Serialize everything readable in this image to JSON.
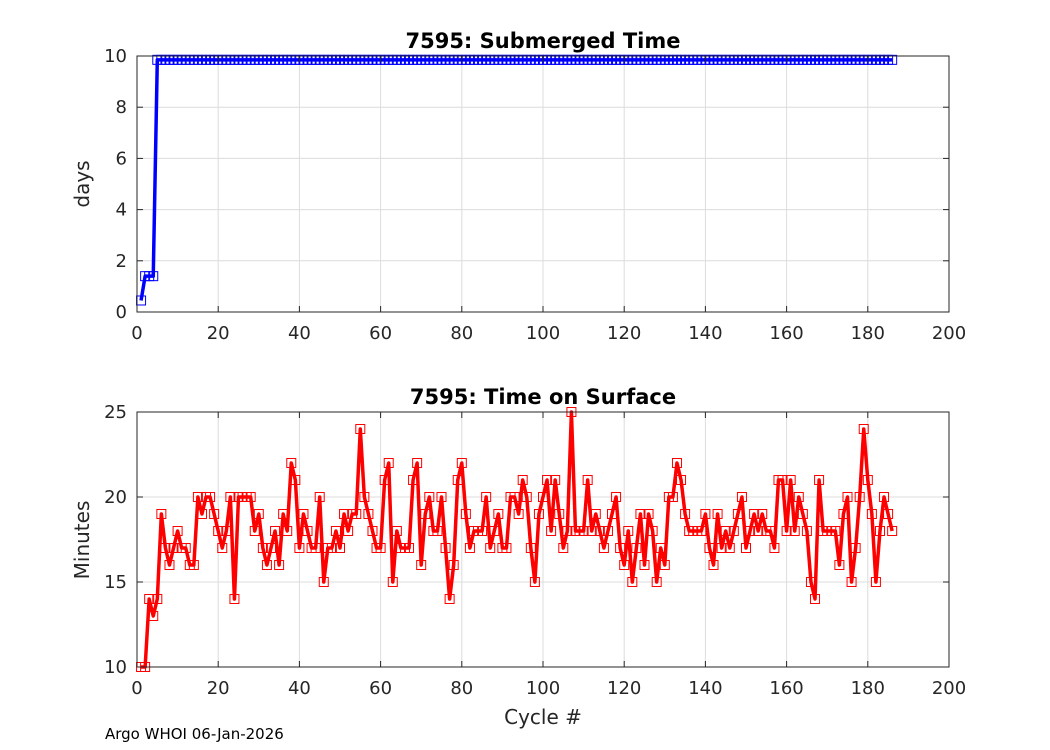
{
  "footer": "Argo WHOI 06-Jan-2026",
  "chart_data": [
    {
      "type": "line",
      "title": "7595: Submerged Time",
      "xlabel": "",
      "ylabel": "days",
      "xlim": [
        0,
        200
      ],
      "ylim": [
        0,
        10
      ],
      "xticks": [
        0,
        20,
        40,
        60,
        80,
        100,
        120,
        140,
        160,
        180,
        200
      ],
      "yticks": [
        0,
        2,
        4,
        6,
        8,
        10
      ],
      "grid": true,
      "color": "#0000ff",
      "marker": "square",
      "x_start": 1,
      "values": [
        0.45,
        1.4,
        1.4,
        1.4,
        9.85,
        9.85,
        9.85,
        9.85,
        9.85,
        9.85,
        9.85,
        9.85,
        9.85,
        9.85,
        9.85,
        9.85,
        9.85,
        9.85,
        9.85,
        9.85,
        9.85,
        9.85,
        9.85,
        9.85,
        9.85,
        9.85,
        9.85,
        9.85,
        9.85,
        9.85,
        9.85,
        9.85,
        9.85,
        9.85,
        9.85,
        9.85,
        9.85,
        9.85,
        9.85,
        9.85,
        9.85,
        9.85,
        9.85,
        9.85,
        9.85,
        9.85,
        9.85,
        9.85,
        9.85,
        9.85,
        9.85,
        9.85,
        9.85,
        9.85,
        9.85,
        9.85,
        9.85,
        9.85,
        9.85,
        9.85,
        9.85,
        9.85,
        9.85,
        9.85,
        9.85,
        9.85,
        9.85,
        9.85,
        9.85,
        9.85,
        9.85,
        9.85,
        9.85,
        9.85,
        9.85,
        9.85,
        9.85,
        9.85,
        9.85,
        9.85,
        9.85,
        9.85,
        9.85,
        9.85,
        9.85,
        9.85,
        9.85,
        9.85,
        9.85,
        9.85,
        9.85,
        9.85,
        9.85,
        9.85,
        9.85,
        9.85,
        9.85,
        9.85,
        9.85,
        9.85,
        9.85,
        9.85,
        9.85,
        9.85,
        9.85,
        9.85,
        9.85,
        9.85,
        9.85,
        9.85,
        9.85,
        9.85,
        9.85,
        9.85,
        9.85,
        9.85,
        9.85,
        9.85,
        9.85,
        9.85,
        9.85,
        9.85,
        9.85,
        9.85,
        9.85,
        9.85,
        9.85,
        9.85,
        9.85,
        9.85,
        9.85,
        9.85,
        9.85,
        9.85,
        9.85,
        9.85,
        9.85,
        9.85,
        9.85,
        9.85,
        9.85,
        9.85,
        9.85,
        9.85,
        9.85,
        9.85,
        9.85,
        9.85,
        9.85,
        9.85,
        9.85,
        9.85,
        9.85,
        9.85,
        9.85,
        9.85,
        9.85,
        9.85,
        9.85,
        9.85,
        9.85,
        9.85,
        9.85,
        9.85,
        9.85,
        9.85,
        9.85,
        9.85,
        9.85,
        9.85,
        9.85,
        9.85,
        9.85,
        9.85,
        9.85,
        9.85,
        9.85,
        9.85,
        9.85,
        9.85,
        9.85,
        9.85,
        9.85,
        9.85,
        9.85,
        9.85
      ]
    },
    {
      "type": "line",
      "title": "7595: Time on Surface",
      "xlabel": "Cycle #",
      "ylabel": "Minutes",
      "xlim": [
        0,
        200
      ],
      "ylim": [
        10,
        25
      ],
      "xticks": [
        0,
        20,
        40,
        60,
        80,
        100,
        120,
        140,
        160,
        180,
        200
      ],
      "yticks": [
        10,
        15,
        20,
        25
      ],
      "grid": true,
      "color": "#ff0000",
      "marker": "square",
      "x_start": 1,
      "values": [
        10,
        10,
        14,
        13,
        14,
        19,
        17,
        16,
        17,
        18,
        17,
        17,
        16,
        16,
        20,
        19,
        20,
        20,
        19,
        18,
        17,
        18,
        20,
        14,
        20,
        20,
        20,
        20,
        18,
        19,
        17,
        16,
        17,
        18,
        16,
        19,
        18,
        22,
        21,
        17,
        19,
        18,
        17,
        17,
        20,
        15,
        17,
        17,
        18,
        17,
        19,
        18,
        19,
        19,
        24,
        20,
        19,
        18,
        17,
        17,
        21,
        22,
        15,
        18,
        17,
        17,
        17,
        21,
        22,
        16,
        19,
        20,
        18,
        18,
        20,
        17,
        14,
        16,
        21,
        22,
        19,
        17,
        18,
        18,
        18,
        20,
        17,
        18,
        19,
        17,
        17,
        20,
        20,
        19,
        21,
        20,
        17,
        15,
        19,
        20,
        21,
        18,
        21,
        19,
        17,
        18,
        25,
        18,
        18,
        18,
        21,
        18,
        19,
        18,
        17,
        18,
        19,
        20,
        17,
        16,
        18,
        15,
        17,
        19,
        16,
        19,
        18,
        15,
        17,
        16,
        20,
        20,
        22,
        21,
        19,
        18,
        18,
        18,
        18,
        19,
        17,
        16,
        19,
        17,
        18,
        17,
        18,
        19,
        20,
        17,
        18,
        19,
        18,
        19,
        18,
        18,
        17,
        21,
        21,
        18,
        21,
        18,
        20,
        19,
        18,
        15,
        14,
        21,
        18,
        18,
        18,
        18,
        16,
        19,
        20,
        15,
        17,
        20,
        24,
        21,
        19,
        15,
        18,
        20,
        19,
        18
      ]
    }
  ]
}
